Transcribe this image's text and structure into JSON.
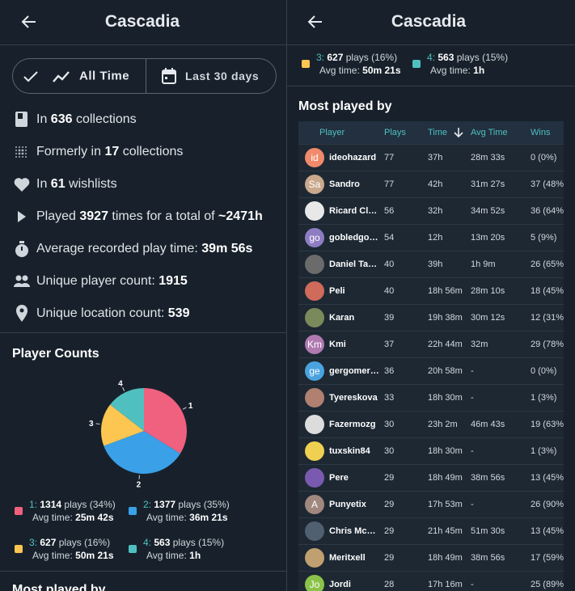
{
  "header": {
    "title": "Cascadia"
  },
  "toggle": {
    "all_time": "All Time",
    "last_30_days": "Last 30 days"
  },
  "stats": {
    "items": [
      {
        "parts": [
          {
            "text": "In "
          },
          {
            "text": "636",
            "bold": true
          },
          {
            "text": " collections"
          }
        ]
      },
      {
        "parts": [
          {
            "text": "Formerly in "
          },
          {
            "text": "17",
            "bold": true
          },
          {
            "text": " collections"
          }
        ]
      },
      {
        "parts": [
          {
            "text": "In "
          },
          {
            "text": "61",
            "bold": true
          },
          {
            "text": " wishlists"
          }
        ]
      },
      {
        "parts": [
          {
            "text": "Played "
          },
          {
            "text": "3927",
            "bold": true
          },
          {
            "text": " times for a total of "
          },
          {
            "text": "~2471h",
            "bold": true
          }
        ]
      },
      {
        "parts": [
          {
            "text": "Average recorded play time: "
          },
          {
            "text": "39m 56s",
            "bold": true
          }
        ]
      },
      {
        "parts": [
          {
            "text": "Unique player count: "
          },
          {
            "text": "1915",
            "bold": true
          }
        ]
      },
      {
        "parts": [
          {
            "text": "Unique location count: "
          },
          {
            "text": "539",
            "bold": true
          }
        ]
      }
    ]
  },
  "player_counts": {
    "title": "Player Counts",
    "chart": {
      "type": "pie",
      "categories": [
        "1",
        "2",
        "3",
        "4"
      ],
      "values": [
        1314,
        1377,
        627,
        563
      ],
      "colors": [
        "#f0607f",
        "#3aa0e8",
        "#fdc651",
        "#4fc0bf"
      ]
    },
    "legend": [
      {
        "label": "1:",
        "plays_text": " plays (34%)",
        "avg_label": "Avg time:",
        "avg": "25m 42s"
      },
      {
        "label": "2:",
        "plays_text": " plays (35%)",
        "avg_label": "Avg time:",
        "avg": "36m 21s"
      },
      {
        "label": "3:",
        "plays_text": " plays (16%)",
        "avg_label": "Avg time:",
        "avg": "50m 21s"
      },
      {
        "label": "4:",
        "plays_text": " plays (15%)",
        "avg_label": "Avg time:",
        "avg": "1h"
      }
    ]
  },
  "most_played": {
    "title": "Most played by",
    "columns": [
      "Player",
      "Plays",
      "Time",
      "Avg Time",
      "Wins"
    ],
    "rows": [
      {
        "initials": "id",
        "avatar": "#f08a6a",
        "name": "ideohazard",
        "plays": 77,
        "time": "37h",
        "avg": "28m 33s",
        "wins": "0 (0%)"
      },
      {
        "initials": "Sa",
        "avatar": "#c9a88c",
        "name": "Sandro",
        "plays": 77,
        "time": "42h",
        "avg": "31m 27s",
        "wins": "37 (48%"
      },
      {
        "avatar": "#e8e8e8",
        "name": "Ricard Cl…",
        "plays": 56,
        "time": "32h",
        "avg": "34m 52s",
        "wins": "36 (64%"
      },
      {
        "initials": "go",
        "avatar": "#8e7cc3",
        "name": "gobledgo…",
        "plays": 54,
        "time": "12h",
        "avg": "13m 20s",
        "wins": "5 (9%)"
      },
      {
        "avatar": "#6b6b6b",
        "name": "Daniel Ta…",
        "plays": 40,
        "time": "39h",
        "avg": "1h 9m",
        "wins": "26 (65%"
      },
      {
        "avatar": "#d06a5a",
        "name": "Peli",
        "plays": 40,
        "time": "18h 56m",
        "avg": "28m 10s",
        "wins": "18 (45%"
      },
      {
        "avatar": "#7a8a5a",
        "name": "Karan",
        "plays": 39,
        "time": "19h 38m",
        "avg": "30m 12s",
        "wins": "12 (31%"
      },
      {
        "initials": "Km",
        "avatar": "#b07ab0",
        "name": "Kmi",
        "plays": 37,
        "time": "22h 44m",
        "avg": "32m",
        "wins": "29 (78%"
      },
      {
        "initials": "ge",
        "avatar": "#4aa3df",
        "name": "gergomer…",
        "plays": 36,
        "time": "20h 58m",
        "avg": "-",
        "wins": "0 (0%)"
      },
      {
        "avatar": "#b08070",
        "name": "Tyereskova",
        "plays": 33,
        "time": "18h 30m",
        "avg": "-",
        "wins": "1 (3%)"
      },
      {
        "avatar": "#dcdcdc",
        "name": "Fazermozg",
        "plays": 30,
        "time": "23h 2m",
        "avg": "46m 43s",
        "wins": "19 (63%"
      },
      {
        "avatar": "#f0d050",
        "name": "tuxskin84",
        "plays": 30,
        "time": "18h 30m",
        "avg": "-",
        "wins": "1 (3%)"
      },
      {
        "avatar": "#7a5ab0",
        "name": "Pere",
        "plays": 29,
        "time": "18h 49m",
        "avg": "38m 56s",
        "wins": "13 (45%"
      },
      {
        "initials": "A",
        "avatar": "#a1887f",
        "name": "Punyetix",
        "plays": 29,
        "time": "17h 53m",
        "avg": "-",
        "wins": "26 (90%"
      },
      {
        "avatar": "#506070",
        "name": "Chris Mc…",
        "plays": 29,
        "time": "21h 45m",
        "avg": "51m 30s",
        "wins": "13 (45%"
      },
      {
        "avatar": "#c0a070",
        "name": "Meritxell",
        "plays": 29,
        "time": "18h 49m",
        "avg": "38m 56s",
        "wins": "17 (59%"
      },
      {
        "initials": "Jo",
        "avatar": "#8bc34a",
        "name": "Jordi",
        "plays": 28,
        "time": "17h 16m",
        "avg": "-",
        "wins": "25 (89%"
      }
    ]
  }
}
